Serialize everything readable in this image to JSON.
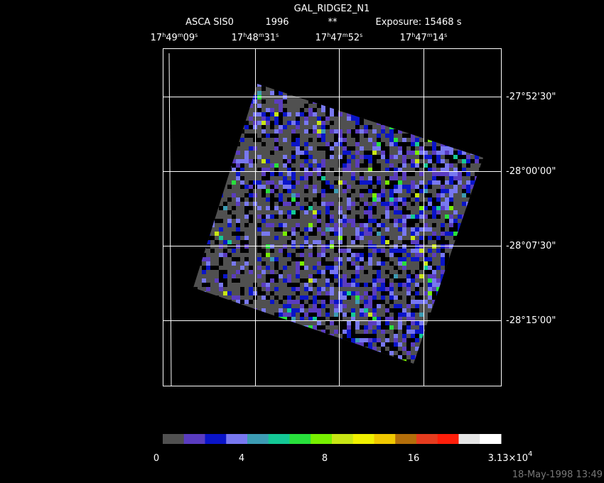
{
  "title": "GAL_RIDGE2_N1",
  "subtitle": [
    "ASCA SIS0",
    "1996",
    "**",
    "Exposure: 15468 s"
  ],
  "ra_labels": [
    [
      "17",
      "h",
      "49",
      "m",
      "09",
      "s"
    ],
    [
      "17",
      "h",
      "48",
      "m",
      "31",
      "s"
    ],
    [
      "17",
      "h",
      "47",
      "m",
      "52",
      "s"
    ],
    [
      "17",
      "h",
      "47",
      "m",
      "14",
      "s"
    ]
  ],
  "dec_labels": [
    "-27°52'30\"",
    "-28°00'00\"",
    "-28°07'30\"",
    "-28°15'00\""
  ],
  "colorbar": {
    "colors": [
      "#505050",
      "#5a3cc0",
      "#0a14c8",
      "#7878f0",
      "#3c9cb4",
      "#14c896",
      "#28e03c",
      "#78f000",
      "#c8e614",
      "#f0f000",
      "#f0c800",
      "#b46e0a",
      "#e63c1e",
      "#ff1e0a",
      "#e6e6e6",
      "#ffffff"
    ],
    "labels": [
      [
        "0"
      ],
      [
        "4"
      ],
      [
        "8"
      ],
      [
        "16"
      ],
      [
        "3.13×10",
        "4"
      ]
    ]
  },
  "footer": "18-May-1998 13:49"
}
